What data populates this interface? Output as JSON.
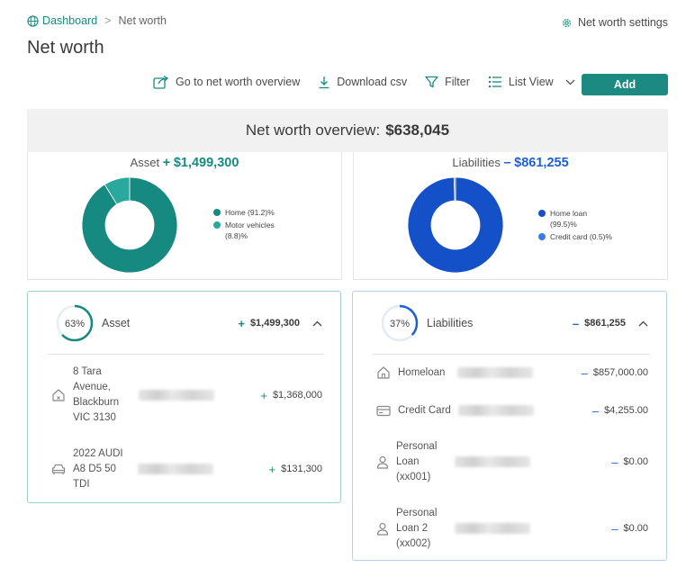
{
  "breadcrumb": {
    "root": "Dashboard",
    "separator": ">",
    "current": "Net worth"
  },
  "header": {
    "title": "Net worth",
    "settings_label": "Net worth settings"
  },
  "toolbar": {
    "go_overview": "Go to net worth overview",
    "download": "Download csv",
    "filter": "Filter",
    "view": "List View",
    "add": "Add"
  },
  "overview": {
    "label": "Net worth overview:",
    "value": "$638,045"
  },
  "asset_summary": {
    "label": "Asset",
    "sign": "+",
    "value": "$1,499,300",
    "legend": [
      {
        "line1": "Home (91.2)%",
        "line2": "",
        "color": "#168a80"
      },
      {
        "line1": "Motor vehicles",
        "line2": "(8.8)%",
        "color": "#2aa89e"
      }
    ]
  },
  "liability_summary": {
    "label": "Liabilities",
    "sign": "–",
    "value": "$861,255",
    "legend": [
      {
        "line1": "Home loan",
        "line2": "(99.5)%",
        "color": "#1450c8"
      },
      {
        "line1": "Credit card (0.5)%",
        "line2": "",
        "color": "#3a7de0"
      }
    ]
  },
  "chart_data": [
    {
      "type": "pie",
      "categories": [
        "Home",
        "Motor vehicles"
      ],
      "values": [
        91.2,
        8.8
      ],
      "colors": [
        "#168a80",
        "#2aa89e"
      ]
    },
    {
      "type": "pie",
      "categories": [
        "Home loan",
        "Credit card"
      ],
      "values": [
        99.5,
        0.5
      ],
      "colors": [
        "#1450c8",
        "#3a7de0"
      ]
    }
  ],
  "asset_card": {
    "percent": "63%",
    "percent_value": 63,
    "name": "Asset",
    "total": "$1,499,300",
    "sign": "+",
    "items": [
      {
        "name_lines": [
          "8 Tara",
          "Avenue,",
          "Blackburn",
          "VIC 3130"
        ],
        "amount": "$1,368,000",
        "icon": "home-icon"
      },
      {
        "name_lines": [
          "2022 AUDI",
          "A8 D5 50",
          "TDI"
        ],
        "amount": "$131,300",
        "icon": "car-icon"
      }
    ]
  },
  "liability_card": {
    "percent": "37%",
    "percent_value": 37,
    "name": "Liabilities",
    "total": "$861,255",
    "sign": "–",
    "items": [
      {
        "name_lines": [
          "Homeloan"
        ],
        "amount": "$857,000.00",
        "icon": "home-icon"
      },
      {
        "name_lines": [
          "Credit Card"
        ],
        "amount": "$4,255.00",
        "icon": "credit-card-icon"
      },
      {
        "name_lines": [
          "Personal",
          "Loan",
          "(xx001)"
        ],
        "amount": "$0.00",
        "icon": "user-icon"
      },
      {
        "name_lines": [
          "Personal",
          "Loan 2",
          "(xx002)"
        ],
        "amount": "$0.00",
        "icon": "user-icon"
      }
    ]
  }
}
